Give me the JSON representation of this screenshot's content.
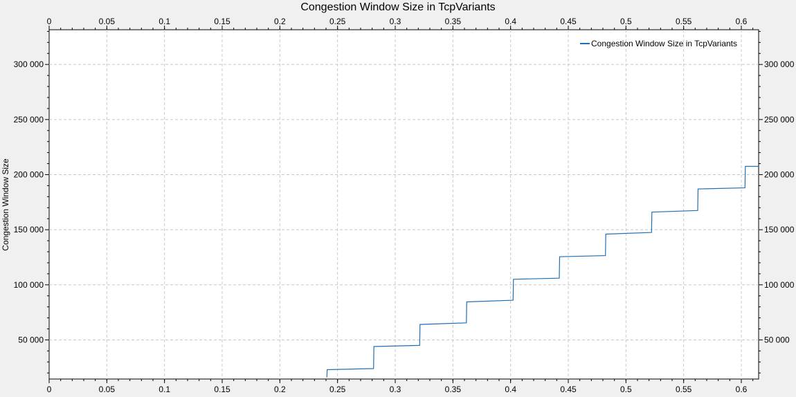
{
  "chart_data": {
    "type": "line",
    "title": "Congestion Window Size in TcpVariants",
    "xlabel": "",
    "ylabel": "Congestion Window Size",
    "xlim": [
      0,
      0.615
    ],
    "ylim": [
      14500,
      331500
    ],
    "x_ticks": [
      "0",
      "0.05",
      "0.1",
      "0.15",
      "0.2",
      "0.25",
      "0.3",
      "0.35",
      "0.4",
      "0.45",
      "0.5",
      "0.55",
      "0.6"
    ],
    "y_ticks": [
      "50 000",
      "100 000",
      "150 000",
      "200 000",
      "250 000",
      "300 000"
    ],
    "grid": true,
    "legend_position": "top-right",
    "colors": {
      "series": "#1f6fb5",
      "grid": "#c8c8c8",
      "plot_bg": "#ffffff",
      "page_bg": "#f0f0f0"
    },
    "series": [
      {
        "name": "Congestion Window Size in TcpVariants",
        "x": [
          0.2407,
          0.241,
          0.2812,
          0.2815,
          0.3212,
          0.3215,
          0.3617,
          0.362,
          0.4022,
          0.4025,
          0.4422,
          0.4425,
          0.4822,
          0.4825,
          0.5222,
          0.5225,
          0.5622,
          0.5625,
          0.6032,
          0.6035,
          0.615
        ],
        "y": [
          16000,
          23000,
          24000,
          44000,
          45000,
          64000,
          65500,
          84500,
          86000,
          105000,
          106000,
          125500,
          126500,
          146000,
          147500,
          166000,
          167500,
          187000,
          188000,
          207500,
          207500
        ]
      }
    ]
  }
}
